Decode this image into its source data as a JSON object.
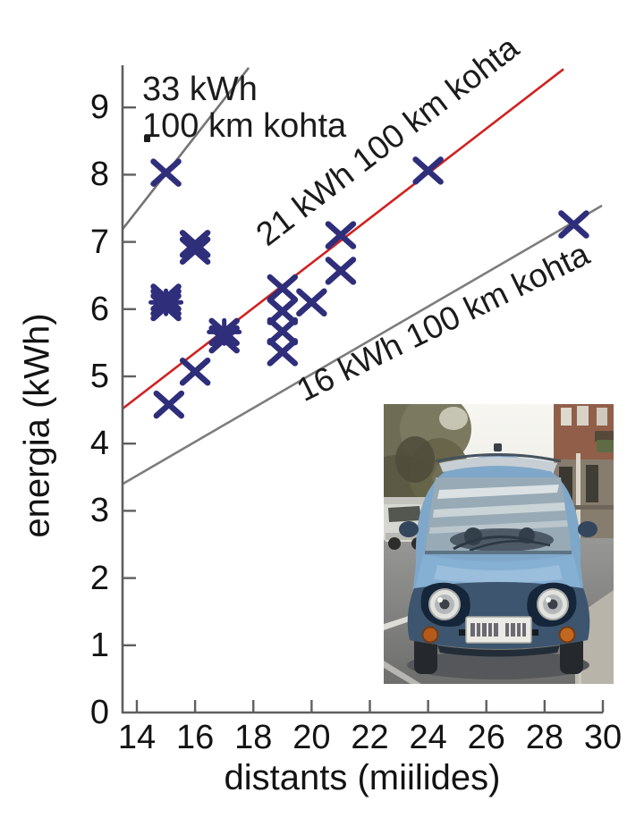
{
  "page": {
    "background": "#ffffff"
  },
  "chart_data": {
    "type": "scatter",
    "title": "",
    "xlabel": "distants (miilides)",
    "ylabel": "energia (kWh)",
    "xlim": [
      13.5,
      30
    ],
    "ylim": [
      0,
      9.6
    ],
    "grid": false,
    "x_ticks": [
      14,
      16,
      18,
      20,
      22,
      24,
      26,
      28,
      30
    ],
    "y_ticks": [
      0,
      1,
      2,
      3,
      4,
      5,
      6,
      7,
      8,
      9
    ],
    "marker": {
      "shape": "x",
      "color": "#2e2e7b",
      "size": 28,
      "stroke_width": 6.5
    },
    "points": [
      {
        "x": 15.0,
        "y": 8.03
      },
      {
        "x": 16.0,
        "y": 6.97
      },
      {
        "x": 16.0,
        "y": 6.87
      },
      {
        "x": 15.0,
        "y": 6.17
      },
      {
        "x": 15.0,
        "y": 6.1,
        "style": "star"
      },
      {
        "x": 15.0,
        "y": 6.03
      },
      {
        "x": 17.0,
        "y": 5.66,
        "style": "star"
      },
      {
        "x": 17.0,
        "y": 5.55
      },
      {
        "x": 16.0,
        "y": 5.07
      },
      {
        "x": 15.1,
        "y": 4.58
      },
      {
        "x": 19.0,
        "y": 6.31
      },
      {
        "x": 19.0,
        "y": 5.97
      },
      {
        "x": 19.0,
        "y": 5.67
      },
      {
        "x": 19.0,
        "y": 5.36
      },
      {
        "x": 20.0,
        "y": 6.1
      },
      {
        "x": 21.0,
        "y": 7.1
      },
      {
        "x": 21.0,
        "y": 6.57
      },
      {
        "x": 24.0,
        "y": 8.06
      },
      {
        "x": 29.0,
        "y": 7.26
      }
    ],
    "ref_lines": [
      {
        "id": "line-33",
        "label": "33 kWh 100 km kohta",
        "color": "#747474",
        "x1": 13.51,
        "y1": 7.19,
        "x2": 17.84,
        "y2": 9.59
      },
      {
        "id": "line-21",
        "label": "21 kWh 100 km kohta",
        "color": "#d12120",
        "x1": 13.51,
        "y1": 4.52,
        "x2": 28.65,
        "y2": 9.57
      },
      {
        "id": "line-16",
        "label": "16 kWh 100 km kohta",
        "color": "#7d7d7d",
        "x1": 13.51,
        "y1": 3.4,
        "x2": 29.97,
        "y2": 7.54
      }
    ],
    "axis_color": "#5f5f5f",
    "legend_position": "none"
  },
  "annotations": {
    "label33_line1": "33 kWh",
    "label33_line2": "100 km kohta",
    "label21": "21 kWh 100 km kohta",
    "label16": "16 kWh 100 km kohta"
  },
  "photo": {
    "alt": "small light-blue electric city car parked on a street",
    "license_plate": "blurred"
  }
}
